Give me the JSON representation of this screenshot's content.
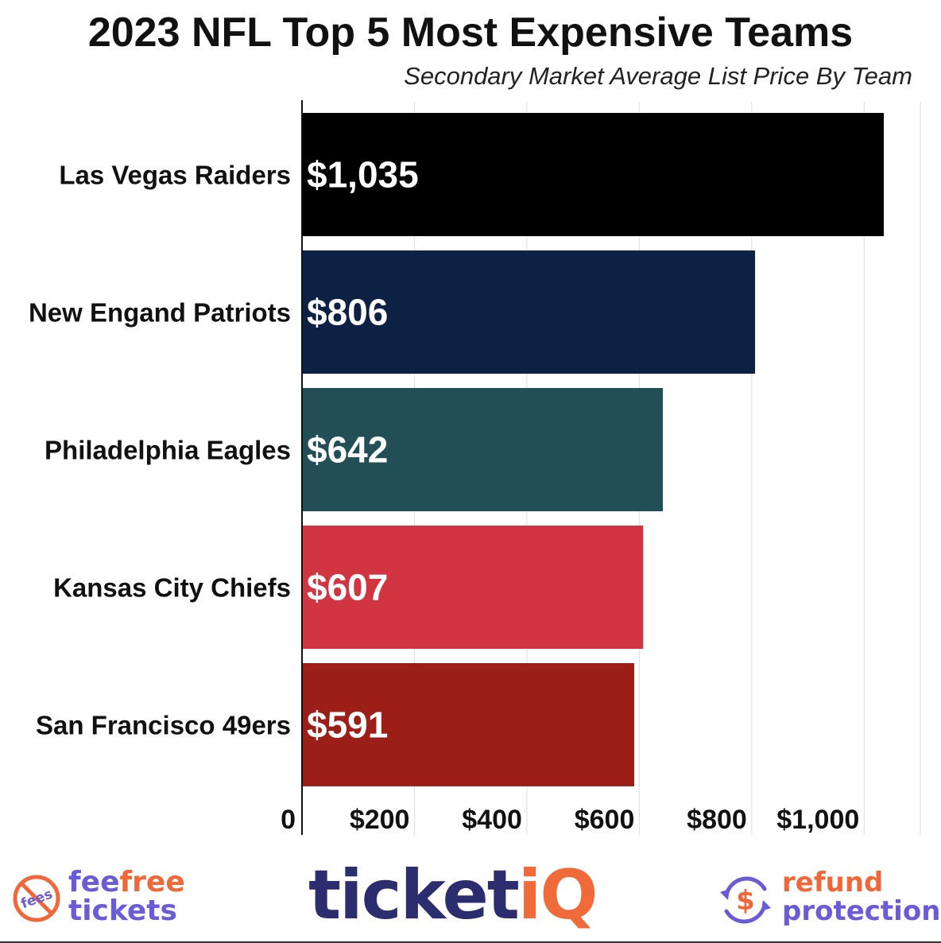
{
  "chart_data": {
    "type": "bar",
    "orientation": "horizontal",
    "title": "2023 NFL Top 5 Most Expensive Teams",
    "subtitle": "Secondary Market Average List Price By Team",
    "categories": [
      "Las Vegas Raiders",
      "New Engand Patriots",
      "Philadelphia Eagles",
      "Kansas City Chiefs",
      "San Francisco 49ers"
    ],
    "values": [
      1035,
      806,
      642,
      607,
      591
    ],
    "value_labels": [
      "$1,035",
      "$806",
      "$642",
      "$607",
      "$591"
    ],
    "colors": [
      "#000000",
      "#0c2143",
      "#224e56",
      "#d23542",
      "#9b1f18"
    ],
    "xlim": [
      0,
      1100
    ],
    "xticks": [
      0,
      200,
      400,
      600,
      800,
      1000
    ],
    "xtick_labels": [
      "0",
      "$200",
      "$400",
      "$600",
      "$800",
      "$1,000"
    ],
    "grid": true,
    "xlabel": "",
    "ylabel": ""
  },
  "footer": {
    "left_badge_text": "fees",
    "left_line1_a": "fee",
    "left_line1_b": "free",
    "left_line2": "tickets",
    "brand_main": "ticket",
    "brand_accent": "iQ",
    "refund_symbol": "$",
    "right_line1": "refund",
    "right_line2": "protection",
    "colors": {
      "purple": "#6a5bd6",
      "orange": "#f0683a",
      "navy": "#2c2d6e"
    }
  }
}
